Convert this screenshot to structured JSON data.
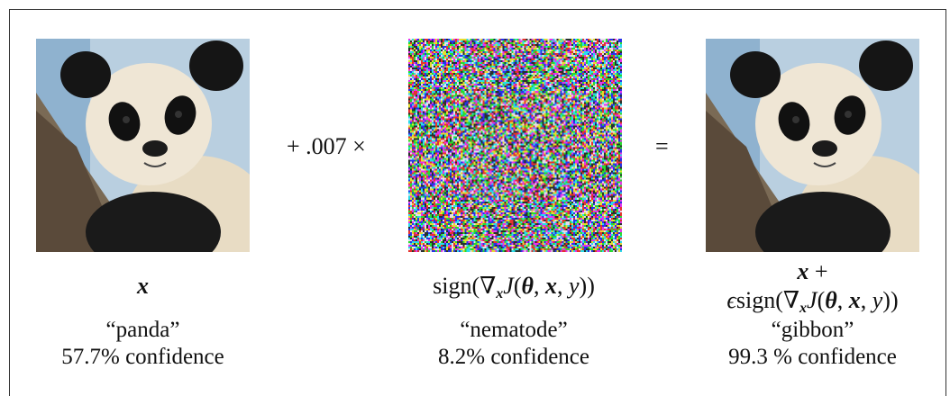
{
  "operators": {
    "times": "+ .007 ×",
    "equals": "="
  },
  "panels": [
    {
      "image": "panda-photo",
      "label_x": "x",
      "class_label": "“panda”",
      "confidence": "57.7% confidence"
    },
    {
      "image": "perturbation-noise",
      "label_sign": "sign(",
      "label_nabla": "∇",
      "label_sub": "x",
      "label_J": "J",
      "label_paren_open": "(",
      "label_theta": "θ",
      "label_comma1": ", ",
      "label_x": "x",
      "label_comma2": ", ",
      "label_y": "y",
      "label_close": "))",
      "class_label": "“nematode”",
      "confidence": "8.2% confidence"
    },
    {
      "image": "adversarial-panda-photo",
      "label_line1_x": "x",
      "label_line1_plus": " +",
      "label_eps": "ϵ",
      "label_sign": "sign(",
      "label_nabla": "∇",
      "label_sub": "x",
      "label_J": "J",
      "label_paren_open": "(",
      "label_theta": "θ",
      "label_comma1": ", ",
      "label_x": "x",
      "label_comma2": ", ",
      "label_y": "y",
      "label_close": "))",
      "class_label": "“gibbon”",
      "confidence": "99.3 % confidence"
    }
  ]
}
